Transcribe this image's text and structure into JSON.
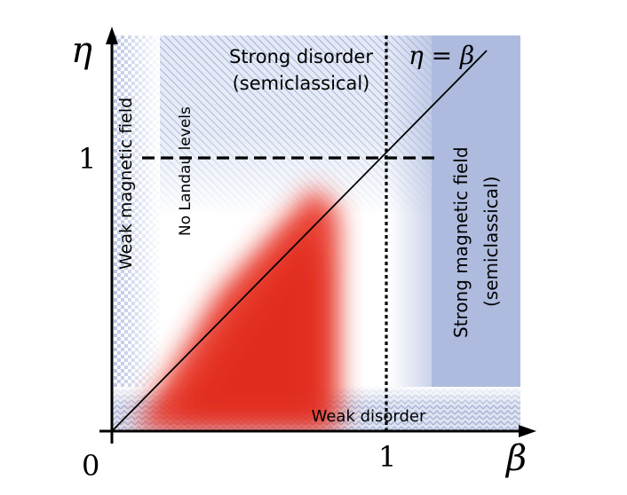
{
  "axes": {
    "y_symbol": "η",
    "x_symbol": "β",
    "origin_label": "0",
    "x_tick_label": "1",
    "y_tick_label": "1"
  },
  "line_label": "η = β",
  "regions": {
    "strong_disorder_line1": "Strong disorder",
    "strong_disorder_line2": "(semiclassical)",
    "weak_magnetic_field": "Weak magnetic field",
    "no_landau_levels": "No Landau levels",
    "strong_magnetic_field_line1": "Strong magnetic field",
    "strong_magnetic_field_line2": "(semiclassical)",
    "weak_disorder": "Weak disorder"
  },
  "colors": {
    "blue_region": "#aebbde",
    "red_region": "#e8392b",
    "axis": "#000000"
  }
}
